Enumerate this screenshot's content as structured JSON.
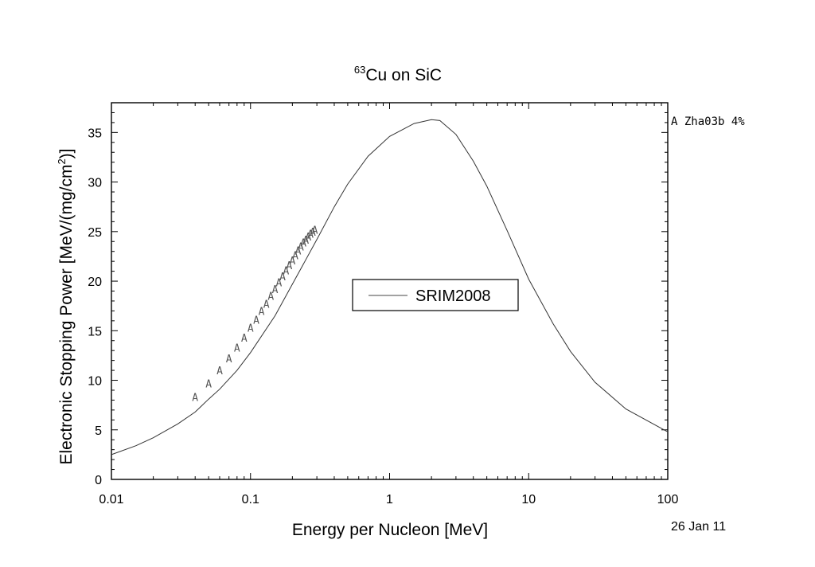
{
  "chart_data": {
    "type": "line",
    "title_sup": "63",
    "title_main": "Cu on SiC",
    "xlabel": "Energy per Nucleon [MeV]",
    "ylabel_main": "Electronic Stopping Power [MeV/(mg/cm",
    "ylabel_sup": "2",
    "ylabel_end": ")]",
    "xscale": "log",
    "xlim": [
      0.01,
      100
    ],
    "ylim": [
      0,
      38
    ],
    "x_ticks": [
      0.01,
      0.1,
      1,
      10,
      100
    ],
    "x_tick_labels": [
      "0.01",
      "0.1",
      "1",
      "10",
      "100"
    ],
    "y_ticks": [
      0,
      5,
      10,
      15,
      20,
      25,
      30,
      35
    ],
    "y_tick_labels": [
      "0",
      "5",
      "10",
      "15",
      "20",
      "25",
      "30",
      "35"
    ],
    "legend": {
      "placement": "center",
      "label": "SRIM2008"
    },
    "series": [
      {
        "name": "SRIM2008",
        "kind": "line",
        "x": [
          0.01,
          0.015,
          0.02,
          0.03,
          0.04,
          0.05,
          0.06,
          0.08,
          0.1,
          0.15,
          0.2,
          0.3,
          0.4,
          0.5,
          0.7,
          1.0,
          1.5,
          2.0,
          2.3,
          3.0,
          4.0,
          5.0,
          7.0,
          10.0,
          15.0,
          20.0,
          30.0,
          50.0,
          100.0
        ],
        "y": [
          2.5,
          3.4,
          4.2,
          5.6,
          6.8,
          8.1,
          9.1,
          11.0,
          12.8,
          16.5,
          19.7,
          24.2,
          27.5,
          29.8,
          32.6,
          34.6,
          35.9,
          36.3,
          36.2,
          34.8,
          32.1,
          29.6,
          25.1,
          20.2,
          15.7,
          12.9,
          9.8,
          7.1,
          4.8
        ]
      },
      {
        "name": "Zha03b 4%",
        "kind": "marker",
        "marker": "A",
        "x": [
          0.04,
          0.05,
          0.06,
          0.07,
          0.08,
          0.09,
          0.1,
          0.11,
          0.12,
          0.13,
          0.14,
          0.15,
          0.16,
          0.17,
          0.18,
          0.19,
          0.2,
          0.21,
          0.22,
          0.23,
          0.24,
          0.25,
          0.26,
          0.27,
          0.28,
          0.29
        ],
        "y": [
          8.3,
          9.7,
          11.0,
          12.2,
          13.3,
          14.3,
          15.3,
          16.1,
          17.0,
          17.7,
          18.5,
          19.2,
          19.9,
          20.5,
          21.1,
          21.6,
          22.1,
          22.6,
          23.1,
          23.5,
          23.9,
          24.2,
          24.5,
          24.8,
          25.0,
          25.2
        ]
      }
    ],
    "side_label": "A Zha03b 4%",
    "date": "26 Jan 11"
  }
}
